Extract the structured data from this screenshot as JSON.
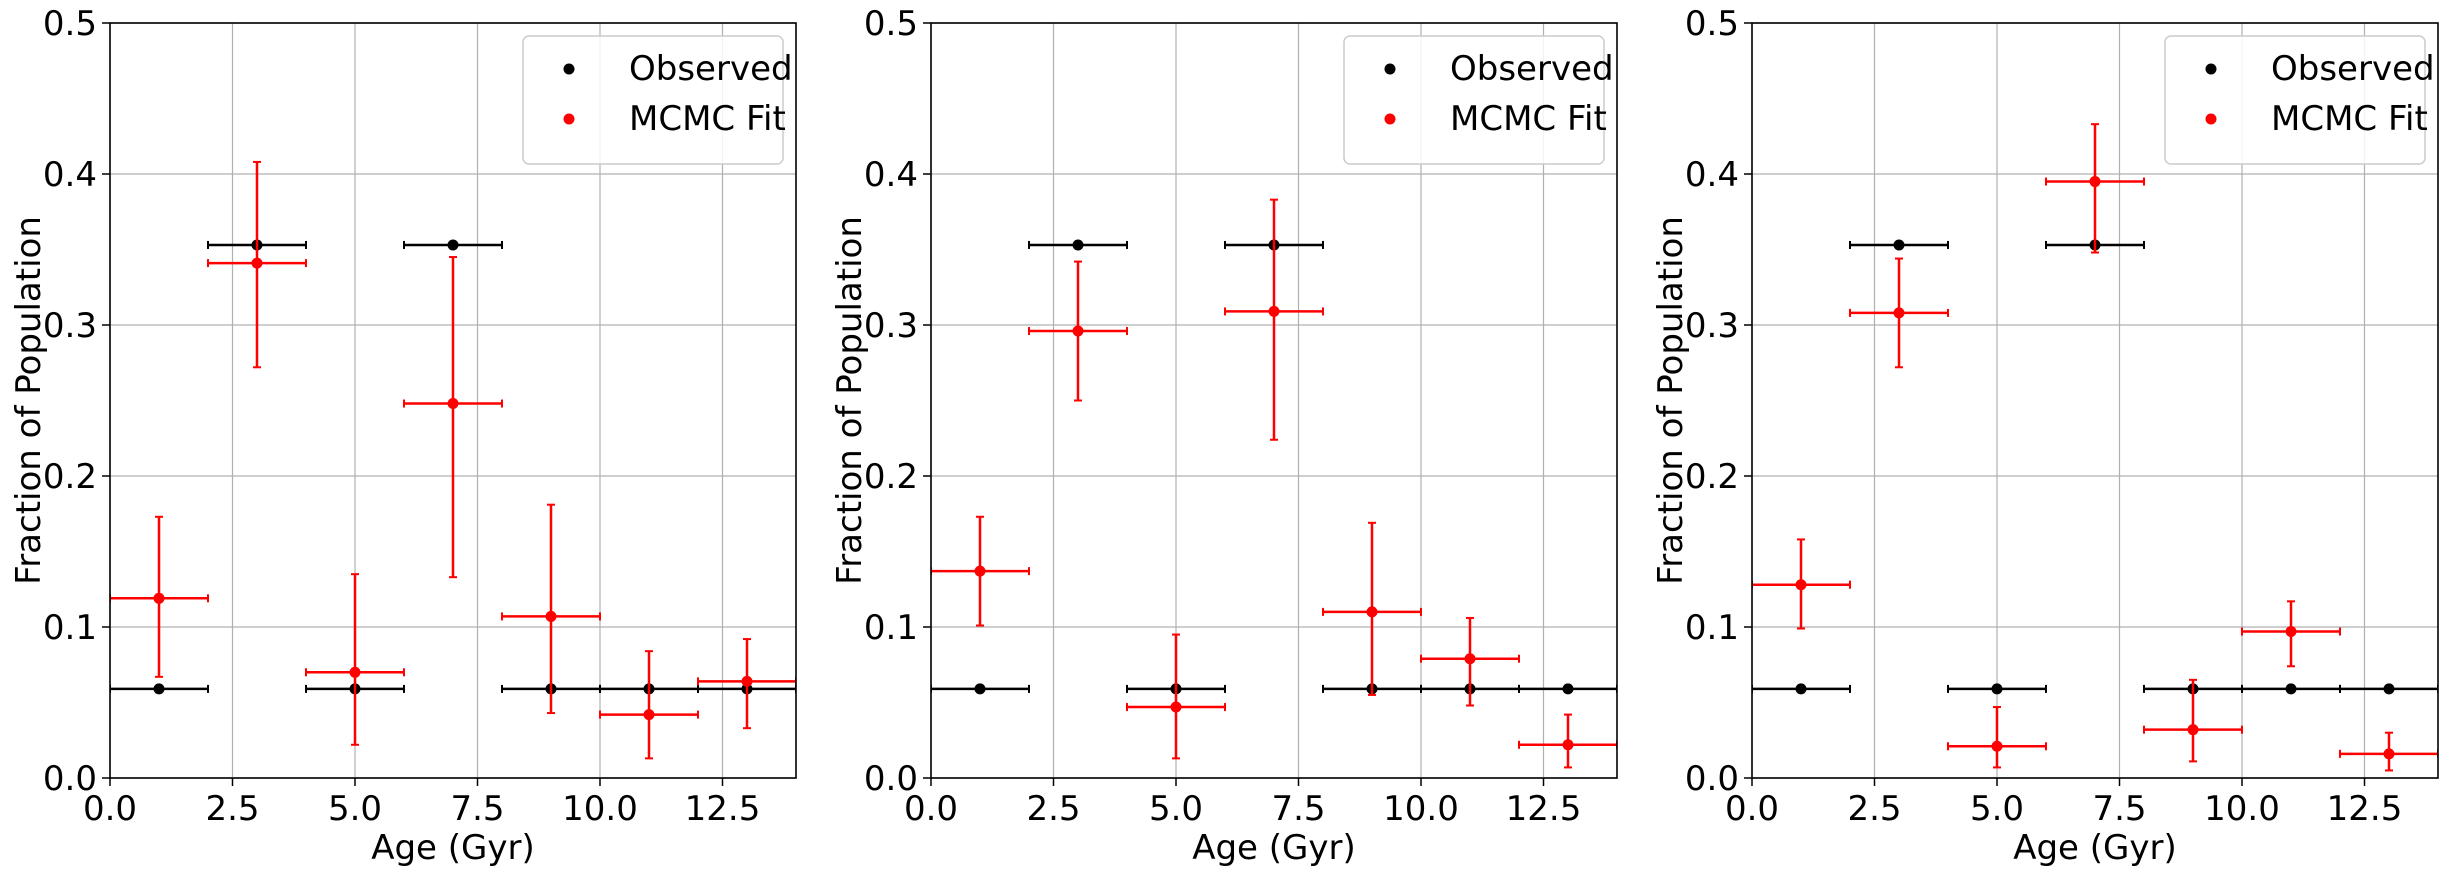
{
  "chart_data": [
    {
      "type": "scatter",
      "xlabel": "Age (Gyr)",
      "ylabel": "Fraction of Population",
      "xlim": [
        0,
        14
      ],
      "ylim": [
        0,
        0.5
      ],
      "xticks": [
        "0.0",
        "2.5",
        "5.0",
        "7.5",
        "10.0",
        "12.5"
      ],
      "yticks": [
        "0.0",
        "0.1",
        "0.2",
        "0.3",
        "0.4",
        "0.5"
      ],
      "grid": true,
      "legend_position": "top-right",
      "series": [
        {
          "name": "Observed",
          "color": "#000000",
          "xerr": 1,
          "x": [
            1,
            3,
            5,
            7,
            9,
            11,
            13
          ],
          "y": [
            0.059,
            0.353,
            0.059,
            0.353,
            0.059,
            0.059,
            0.059
          ],
          "yerr_low": [
            0,
            0,
            0,
            0,
            0,
            0,
            0
          ],
          "yerr_high": [
            0,
            0,
            0,
            0,
            0,
            0,
            0
          ]
        },
        {
          "name": "MCMC Fit",
          "color": "#ff0000",
          "xerr": 1,
          "x": [
            1,
            3,
            5,
            7,
            9,
            11,
            13
          ],
          "y": [
            0.119,
            0.341,
            0.07,
            0.248,
            0.107,
            0.042,
            0.064
          ],
          "yerr_low": [
            0.052,
            0.069,
            0.048,
            0.115,
            0.064,
            0.029,
            0.031
          ],
          "yerr_high": [
            0.054,
            0.067,
            0.065,
            0.097,
            0.074,
            0.042,
            0.028
          ]
        }
      ]
    },
    {
      "type": "scatter",
      "xlabel": "Age (Gyr)",
      "ylabel": "Fraction of Population",
      "xlim": [
        0,
        14
      ],
      "ylim": [
        0,
        0.5
      ],
      "xticks": [
        "0.0",
        "2.5",
        "5.0",
        "7.5",
        "10.0",
        "12.5"
      ],
      "yticks": [
        "0.0",
        "0.1",
        "0.2",
        "0.3",
        "0.4",
        "0.5"
      ],
      "grid": true,
      "legend_position": "top-right",
      "series": [
        {
          "name": "Observed",
          "color": "#000000",
          "xerr": 1,
          "x": [
            1,
            3,
            5,
            7,
            9,
            11,
            13
          ],
          "y": [
            0.059,
            0.353,
            0.059,
            0.353,
            0.059,
            0.059,
            0.059
          ],
          "yerr_low": [
            0,
            0,
            0,
            0,
            0,
            0,
            0
          ],
          "yerr_high": [
            0,
            0,
            0,
            0,
            0,
            0,
            0
          ]
        },
        {
          "name": "MCMC Fit",
          "color": "#ff0000",
          "xerr": 1,
          "x": [
            1,
            3,
            5,
            7,
            9,
            11,
            13
          ],
          "y": [
            0.137,
            0.296,
            0.047,
            0.309,
            0.11,
            0.079,
            0.022
          ],
          "yerr_low": [
            0.036,
            0.046,
            0.034,
            0.085,
            0.055,
            0.031,
            0.015
          ],
          "yerr_high": [
            0.036,
            0.046,
            0.048,
            0.074,
            0.059,
            0.027,
            0.02
          ]
        }
      ]
    },
    {
      "type": "scatter",
      "xlabel": "Age (Gyr)",
      "ylabel": "Fraction of Population",
      "xlim": [
        0,
        14
      ],
      "ylim": [
        0,
        0.5
      ],
      "xticks": [
        "0.0",
        "2.5",
        "5.0",
        "7.5",
        "10.0",
        "12.5"
      ],
      "yticks": [
        "0.0",
        "0.1",
        "0.2",
        "0.3",
        "0.4",
        "0.5"
      ],
      "grid": true,
      "legend_position": "top-right",
      "series": [
        {
          "name": "Observed",
          "color": "#000000",
          "xerr": 1,
          "x": [
            1,
            3,
            5,
            7,
            9,
            11,
            13
          ],
          "y": [
            0.059,
            0.353,
            0.059,
            0.353,
            0.059,
            0.059,
            0.059
          ],
          "yerr_low": [
            0,
            0,
            0,
            0,
            0,
            0,
            0
          ],
          "yerr_high": [
            0,
            0,
            0,
            0,
            0,
            0,
            0
          ]
        },
        {
          "name": "MCMC Fit",
          "color": "#ff0000",
          "xerr": 1,
          "x": [
            1,
            3,
            5,
            7,
            9,
            11,
            13
          ],
          "y": [
            0.128,
            0.308,
            0.021,
            0.395,
            0.032,
            0.097,
            0.016
          ],
          "yerr_low": [
            0.029,
            0.036,
            0.014,
            0.047,
            0.021,
            0.023,
            0.011
          ],
          "yerr_high": [
            0.03,
            0.036,
            0.026,
            0.038,
            0.033,
            0.02,
            0.014
          ]
        }
      ]
    }
  ]
}
